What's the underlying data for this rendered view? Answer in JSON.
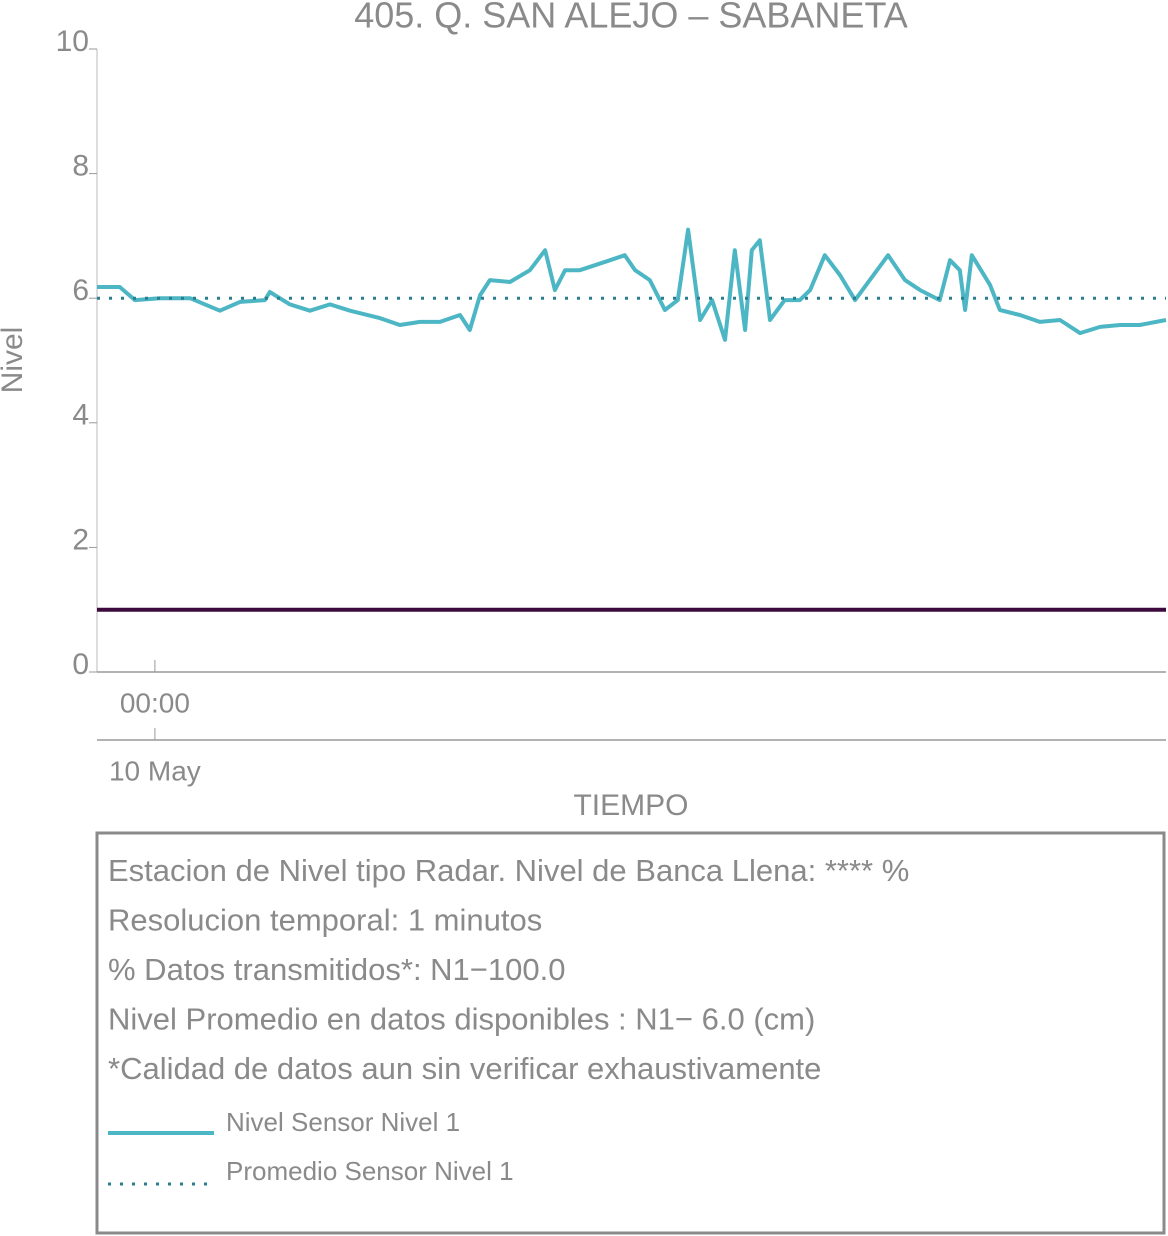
{
  "chart_data": {
    "type": "line",
    "title": "405. Q. SAN ALEJO – SABANETA",
    "ylabel": "Nivel",
    "xlabel": "TIEMPO",
    "x": [
      -1.3,
      -0.79,
      -0.45,
      0.11,
      0.79,
      1.46,
      1.91,
      2.47,
      2.58,
      3.03,
      3.48,
      3.93,
      4.38,
      5.05,
      5.5,
      5.95,
      6.4,
      6.85,
      7.07,
      7.3,
      7.52,
      7.97,
      8.42,
      8.76,
      8.98,
      9.21,
      9.54,
      9.88,
      10.22,
      10.55,
      10.78,
      11.11,
      11.45,
      11.74,
      11.97,
      12.24,
      12.51,
      12.8,
      13.02,
      13.25,
      13.4,
      13.58,
      13.81,
      14.14,
      14.48,
      14.71,
      15.04,
      15.38,
      15.72,
      16.05,
      16.46,
      16.84,
      17.18,
      17.62,
      17.85,
      18.07,
      18.19,
      18.34,
      18.75,
      18.97,
      19.42,
      19.87,
      20.32,
      20.77,
      21.22,
      21.67,
      22.11,
      22.7
    ],
    "series": [
      {
        "name": "Nivel Sensor Nivel 1",
        "color": "#4db6c4",
        "values": [
          6.18,
          6.18,
          5.97,
          6.0,
          6.0,
          5.8,
          5.94,
          5.97,
          6.1,
          5.9,
          5.8,
          5.9,
          5.8,
          5.68,
          5.57,
          5.62,
          5.62,
          5.73,
          5.49,
          6.05,
          6.29,
          6.26,
          6.45,
          6.77,
          6.13,
          6.45,
          6.45,
          6.53,
          6.61,
          6.69,
          6.45,
          6.29,
          5.81,
          5.97,
          7.1,
          5.65,
          5.97,
          5.33,
          6.77,
          5.49,
          6.77,
          6.93,
          5.65,
          5.97,
          5.97,
          6.13,
          6.69,
          6.37,
          5.97,
          6.29,
          6.69,
          6.29,
          6.13,
          5.97,
          6.61,
          6.45,
          5.81,
          6.69,
          6.21,
          5.81,
          5.73,
          5.62,
          5.65,
          5.44,
          5.54,
          5.57,
          5.57,
          5.65
        ]
      },
      {
        "name": "Promedio Sensor Nivel 1",
        "color": "#2a7f8f",
        "dash": "dotted",
        "value": 6.0
      }
    ],
    "reference_line": {
      "value": 1,
      "color": "#3d0a3d"
    },
    "xlim": [
      -1.3,
      22.7
    ],
    "xticks": [
      {
        "value": 0,
        "label": "00:00"
      }
    ],
    "date_ticks": [
      {
        "value": 0,
        "label": "10 May"
      }
    ],
    "ylim": [
      0,
      10
    ],
    "yticks": [
      0,
      2,
      4,
      6,
      8,
      10
    ],
    "notes": [
      "Estacion de Nivel tipo Radar. Nivel de Banca Llena: **** %",
      "Resolucion temporal: 1 minutos",
      "% Datos transmitidos*: N1−100.0",
      "Nivel Promedio en datos disponibles : N1−  6.0 (cm)",
      "*Calidad de datos aun sin verificar exhaustivamente"
    ]
  }
}
